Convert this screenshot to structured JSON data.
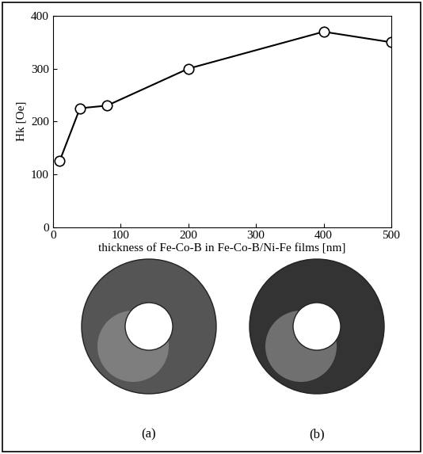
{
  "chart_data": {
    "type": "line",
    "x_label": "thickness of Fe-Co-B in Fe-Co-B/Ni-Fe films [nm]",
    "y_label": "Hk [Oe]",
    "x": [
      10,
      40,
      80,
      200,
      400,
      500
    ],
    "values": [
      125,
      225,
      230,
      300,
      370,
      350
    ],
    "color": "#000000",
    "marker": "o",
    "line_style": "solid",
    "xlim": [
      0,
      500
    ],
    "xticks": [
      0,
      100,
      200,
      300,
      400,
      500
    ],
    "ylim": [
      0,
      400
    ],
    "yticks": [
      0,
      100,
      200,
      300,
      400
    ],
    "grid": false
  },
  "image_labels": [
    "(a)",
    "(b)"
  ]
}
